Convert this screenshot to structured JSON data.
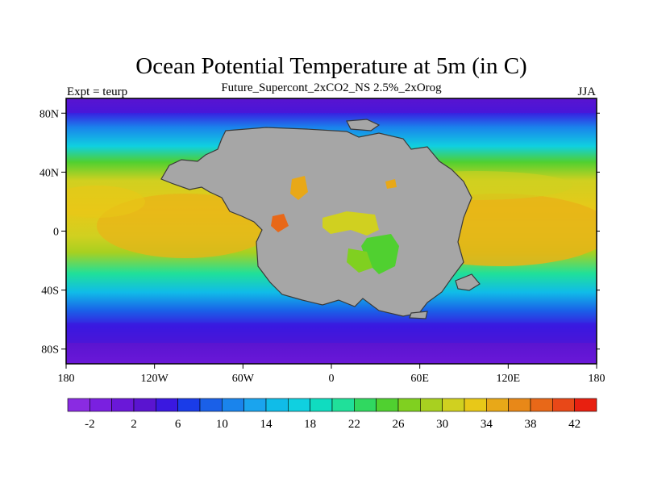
{
  "title": "Ocean Potential Temperature at 5m (in C)",
  "subtitle": "Future_Supercont_2xCO2_NS 2.5%_2xOrog",
  "left_label": "Expt = teurp",
  "right_label": "JJA",
  "lat_ticks": [
    "80N",
    "40N",
    "0",
    "40S",
    "80S"
  ],
  "lon_ticks": [
    "180",
    "120W",
    "60W",
    "0",
    "60E",
    "120E",
    "180"
  ],
  "colorbar": {
    "labels": [
      "-2",
      "2",
      "6",
      "10",
      "14",
      "18",
      "22",
      "26",
      "30",
      "34",
      "38",
      "42"
    ],
    "colors": [
      "#8a2be2",
      "#7a20e0",
      "#6a18d8",
      "#5a14d0",
      "#3a18e0",
      "#1a3ce8",
      "#1a60e8",
      "#1a84ec",
      "#1aa4ee",
      "#10bce8",
      "#10d0e0",
      "#10dcc0",
      "#20e09a",
      "#30d860",
      "#50d030",
      "#80d020",
      "#a8d020",
      "#d0d020",
      "#e8c818",
      "#e8a818",
      "#e88818",
      "#e86818",
      "#e84818",
      "#e82010"
    ]
  },
  "colors": {
    "land": "#a6a6a6",
    "coast": "#3a3a3a",
    "frame": "#000000"
  }
}
